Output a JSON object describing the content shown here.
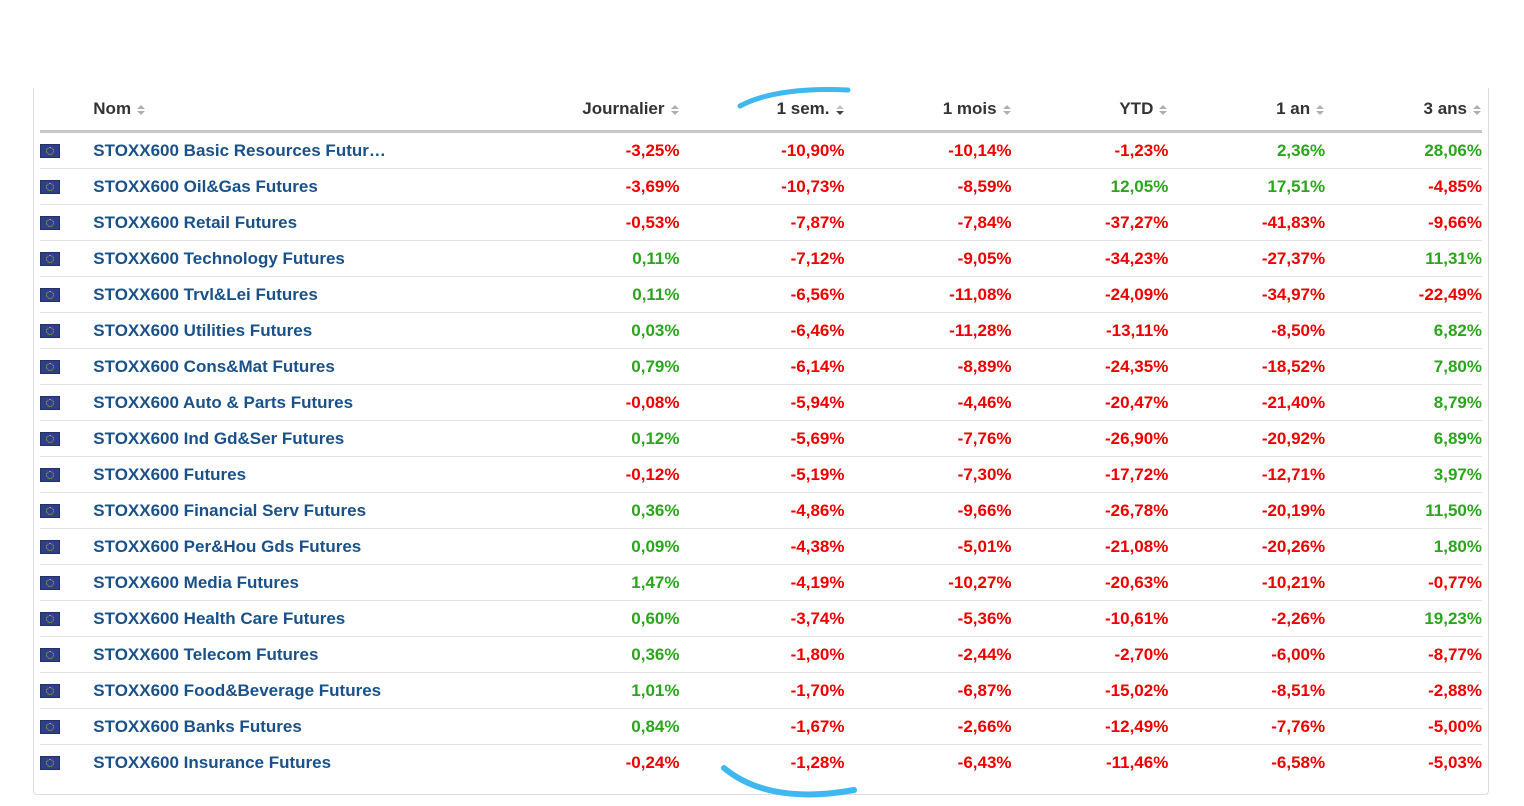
{
  "columns": {
    "name": "Nom",
    "daily": "Journalier",
    "week": "1 sem.",
    "month": "1 mois",
    "ytd": "YTD",
    "year1": "1 an",
    "year3": "3 ans"
  },
  "colors": {
    "negative": "#ee0000",
    "positive": "#2ca51e",
    "link": "#1a5189",
    "highlight_stroke": "#3fb8ef"
  },
  "rows": [
    {
      "name": "STOXX600 Basic Resources Futur…",
      "d": "-3,25%",
      "w": "-10,90%",
      "m": "-10,14%",
      "ytd": "-1,23%",
      "y1": "2,36%",
      "y3": "28,06%"
    },
    {
      "name": "STOXX600 Oil&Gas Futures",
      "d": "-3,69%",
      "w": "-10,73%",
      "m": "-8,59%",
      "ytd": "12,05%",
      "y1": "17,51%",
      "y3": "-4,85%"
    },
    {
      "name": "STOXX600 Retail Futures",
      "d": "-0,53%",
      "w": "-7,87%",
      "m": "-7,84%",
      "ytd": "-37,27%",
      "y1": "-41,83%",
      "y3": "-9,66%"
    },
    {
      "name": "STOXX600 Technology Futures",
      "d": "0,11%",
      "w": "-7,12%",
      "m": "-9,05%",
      "ytd": "-34,23%",
      "y1": "-27,37%",
      "y3": "11,31%"
    },
    {
      "name": "STOXX600 Trvl&Lei Futures",
      "d": "0,11%",
      "w": "-6,56%",
      "m": "-11,08%",
      "ytd": "-24,09%",
      "y1": "-34,97%",
      "y3": "-22,49%"
    },
    {
      "name": "STOXX600 Utilities Futures",
      "d": "0,03%",
      "w": "-6,46%",
      "m": "-11,28%",
      "ytd": "-13,11%",
      "y1": "-8,50%",
      "y3": "6,82%"
    },
    {
      "name": "STOXX600 Cons&Mat Futures",
      "d": "0,79%",
      "w": "-6,14%",
      "m": "-8,89%",
      "ytd": "-24,35%",
      "y1": "-18,52%",
      "y3": "7,80%"
    },
    {
      "name": "STOXX600 Auto & Parts Futures",
      "d": "-0,08%",
      "w": "-5,94%",
      "m": "-4,46%",
      "ytd": "-20,47%",
      "y1": "-21,40%",
      "y3": "8,79%"
    },
    {
      "name": "STOXX600 Ind Gd&Ser Futures",
      "d": "0,12%",
      "w": "-5,69%",
      "m": "-7,76%",
      "ytd": "-26,90%",
      "y1": "-20,92%",
      "y3": "6,89%"
    },
    {
      "name": "STOXX600 Futures",
      "d": "-0,12%",
      "w": "-5,19%",
      "m": "-7,30%",
      "ytd": "-17,72%",
      "y1": "-12,71%",
      "y3": "3,97%"
    },
    {
      "name": "STOXX600 Financial Serv Futures",
      "d": "0,36%",
      "w": "-4,86%",
      "m": "-9,66%",
      "ytd": "-26,78%",
      "y1": "-20,19%",
      "y3": "11,50%"
    },
    {
      "name": "STOXX600 Per&Hou Gds Futures",
      "d": "0,09%",
      "w": "-4,38%",
      "m": "-5,01%",
      "ytd": "-21,08%",
      "y1": "-20,26%",
      "y3": "1,80%"
    },
    {
      "name": "STOXX600 Media Futures",
      "d": "1,47%",
      "w": "-4,19%",
      "m": "-10,27%",
      "ytd": "-20,63%",
      "y1": "-10,21%",
      "y3": "-0,77%"
    },
    {
      "name": "STOXX600 Health Care Futures",
      "d": "0,60%",
      "w": "-3,74%",
      "m": "-5,36%",
      "ytd": "-10,61%",
      "y1": "-2,26%",
      "y3": "19,23%"
    },
    {
      "name": "STOXX600 Telecom Futures",
      "d": "0,36%",
      "w": "-1,80%",
      "m": "-2,44%",
      "ytd": "-2,70%",
      "y1": "-6,00%",
      "y3": "-8,77%"
    },
    {
      "name": "STOXX600 Food&Beverage Futures",
      "d": "1,01%",
      "w": "-1,70%",
      "m": "-6,87%",
      "ytd": "-15,02%",
      "y1": "-8,51%",
      "y3": "-2,88%"
    },
    {
      "name": "STOXX600 Banks Futures",
      "d": "0,84%",
      "w": "-1,67%",
      "m": "-2,66%",
      "ytd": "-12,49%",
      "y1": "-7,76%",
      "y3": "-5,00%"
    },
    {
      "name": "STOXX600 Insurance Futures",
      "d": "-0,24%",
      "w": "-1,28%",
      "m": "-6,43%",
      "ytd": "-11,46%",
      "y1": "-6,58%",
      "y3": "-5,03%"
    }
  ]
}
